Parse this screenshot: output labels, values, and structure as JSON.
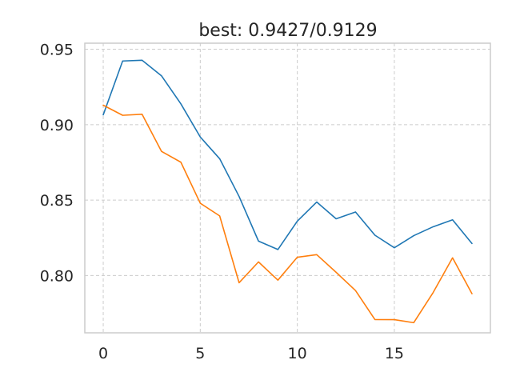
{
  "chart_data": {
    "type": "line",
    "title": "best: 0.9427/0.9129",
    "xlabel": "",
    "ylabel": "",
    "x": [
      0,
      1,
      2,
      3,
      4,
      5,
      6,
      7,
      8,
      9,
      10,
      11,
      12,
      13,
      14,
      15,
      16,
      17,
      18,
      19
    ],
    "xlim": [
      -0.95,
      19.95
    ],
    "ylim": [
      0.762,
      0.954
    ],
    "xticks": [
      0,
      5,
      10,
      15
    ],
    "yticks": [
      0.8,
      0.85,
      0.9,
      0.95
    ],
    "xtick_labels": [
      "0",
      "5",
      "10",
      "15"
    ],
    "ytick_labels": [
      "0.80",
      "0.85",
      "0.90",
      "0.95"
    ],
    "grid": true,
    "series": [
      {
        "name": "series-1",
        "color": "#1f77b4",
        "values": [
          0.9065,
          0.9422,
          0.9427,
          0.9324,
          0.9138,
          0.8918,
          0.8774,
          0.8524,
          0.8228,
          0.8172,
          0.836,
          0.8487,
          0.8376,
          0.8421,
          0.8267,
          0.8184,
          0.8264,
          0.8323,
          0.8369,
          0.8212
        ]
      },
      {
        "name": "series-2",
        "color": "#ff7f0e",
        "values": [
          0.9129,
          0.9062,
          0.9069,
          0.8823,
          0.8751,
          0.8479,
          0.8395,
          0.7952,
          0.809,
          0.7969,
          0.8121,
          0.8138,
          0.8021,
          0.79,
          0.7708,
          0.7707,
          0.7687,
          0.7887,
          0.8117,
          0.7879
        ]
      }
    ]
  }
}
